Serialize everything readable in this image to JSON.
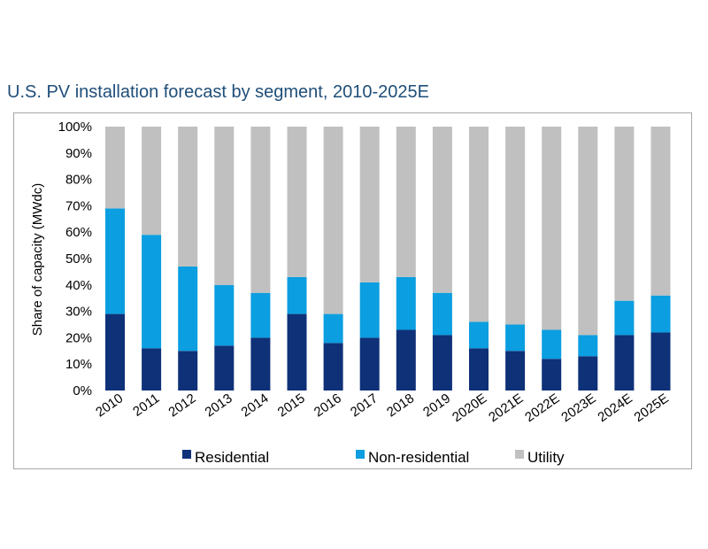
{
  "title": "U.S. PV installation forecast by segment, 2010-2025E",
  "chart_data": {
    "type": "bar",
    "stacked": true,
    "ylabel": "Share of capacity (MWdc)",
    "xlabel": "",
    "ylim": [
      0,
      100
    ],
    "yticks": [
      "0%",
      "10%",
      "20%",
      "30%",
      "40%",
      "50%",
      "60%",
      "70%",
      "80%",
      "90%",
      "100%"
    ],
    "categories": [
      "2010",
      "2011",
      "2012",
      "2013",
      "2014",
      "2015",
      "2016",
      "2017",
      "2018",
      "2019",
      "2020E",
      "2021E",
      "2022E",
      "2023E",
      "2024E",
      "2025E"
    ],
    "series": [
      {
        "name": "Residential",
        "color": "#0e3178",
        "values": [
          29,
          16,
          15,
          17,
          20,
          29,
          18,
          20,
          23,
          21,
          16,
          15,
          12,
          13,
          21,
          22
        ]
      },
      {
        "name": "Non-residential",
        "color": "#0b9ee0",
        "values": [
          40,
          43,
          32,
          23,
          17,
          14,
          11,
          21,
          20,
          16,
          10,
          10,
          11,
          8,
          13,
          14
        ]
      },
      {
        "name": "Utility",
        "color": "#c0c0c0",
        "values": [
          31,
          41,
          53,
          60,
          63,
          57,
          71,
          59,
          57,
          63,
          74,
          75,
          77,
          79,
          66,
          64
        ]
      }
    ],
    "grid": false,
    "legend_position": "bottom"
  }
}
